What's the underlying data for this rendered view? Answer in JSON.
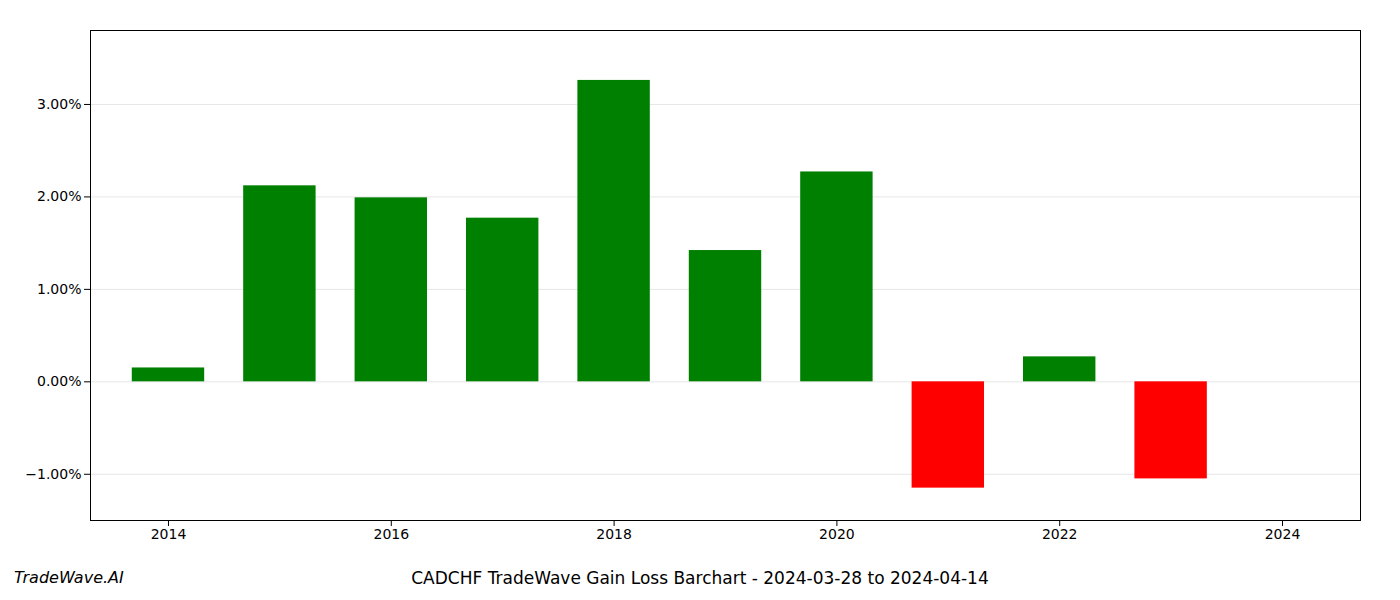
{
  "chart_data": {
    "type": "bar",
    "title": "CADCHF TradeWave Gain Loss Barchart - 2024-03-28 to 2024-04-14",
    "annotations": [
      "TradeWave.AI"
    ],
    "x": [
      2014,
      2015,
      2016,
      2017,
      2018,
      2019,
      2020,
      2021,
      2022,
      2023
    ],
    "values": [
      0.0015,
      0.0212,
      0.0199,
      0.0177,
      0.0326,
      0.0142,
      0.0227,
      -0.0115,
      0.0027,
      -0.0105
    ],
    "colors": [
      "#008000",
      "#008000",
      "#008000",
      "#008000",
      "#008000",
      "#008000",
      "#008000",
      "#ff0000",
      "#008000",
      "#ff0000"
    ],
    "xlim": [
      2013.3,
      2024.7
    ],
    "xticks": [
      2014,
      2016,
      2018,
      2020,
      2022,
      2024
    ],
    "ylim": [
      -0.015,
      0.038
    ],
    "yticks": [
      {
        "value": -0.01,
        "label": "−1.00%"
      },
      {
        "value": 0.0,
        "label": "0.00%"
      },
      {
        "value": 0.01,
        "label": "1.00%"
      },
      {
        "value": 0.02,
        "label": "2.00%"
      },
      {
        "value": 0.03,
        "label": "3.00%"
      }
    ],
    "grid": true
  }
}
